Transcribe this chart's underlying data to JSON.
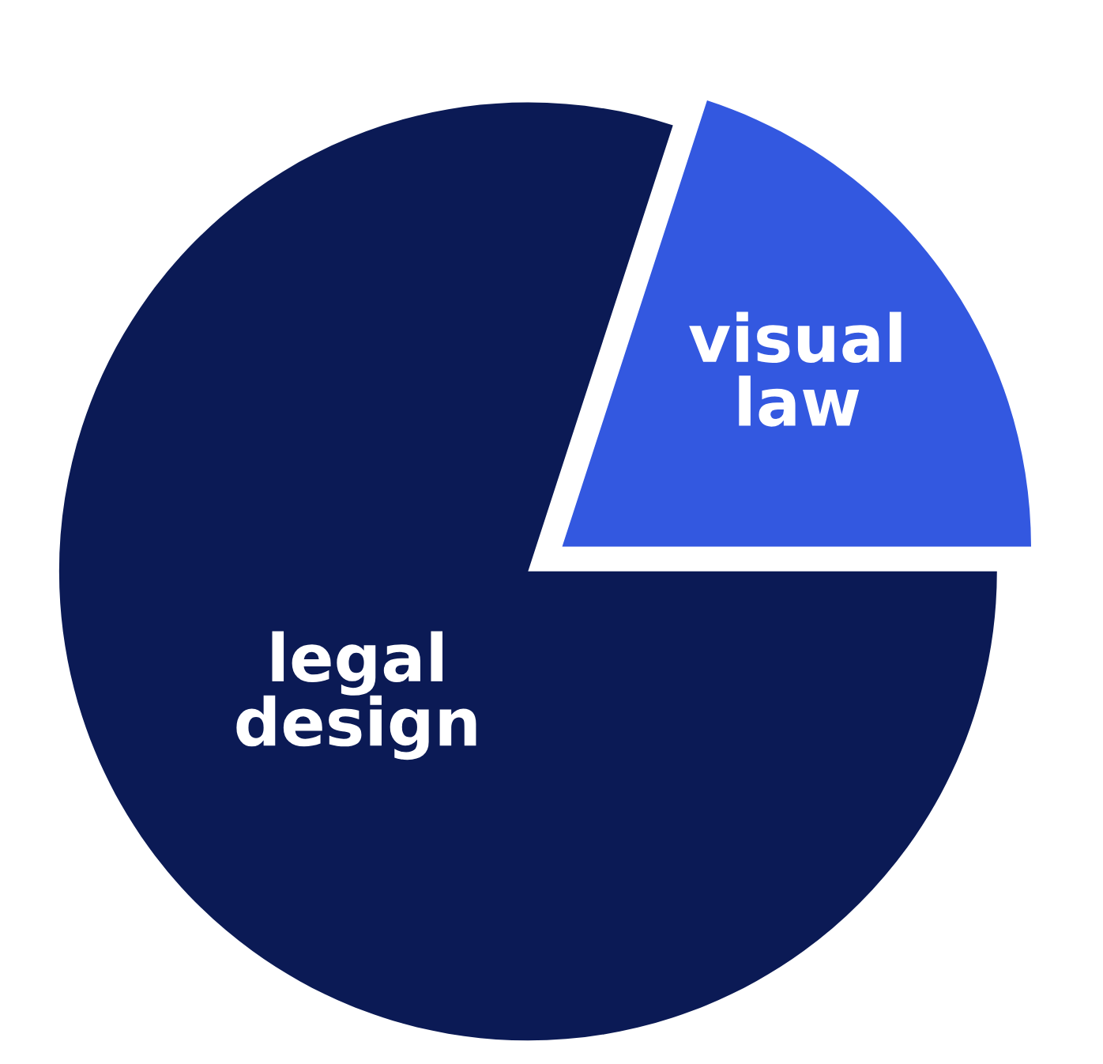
{
  "chart_data": {
    "type": "pie",
    "categories": [
      "visual law",
      "legal design"
    ],
    "values": [
      20,
      80
    ],
    "colors": [
      "#3358e0",
      "#0b1a55"
    ]
  }
}
